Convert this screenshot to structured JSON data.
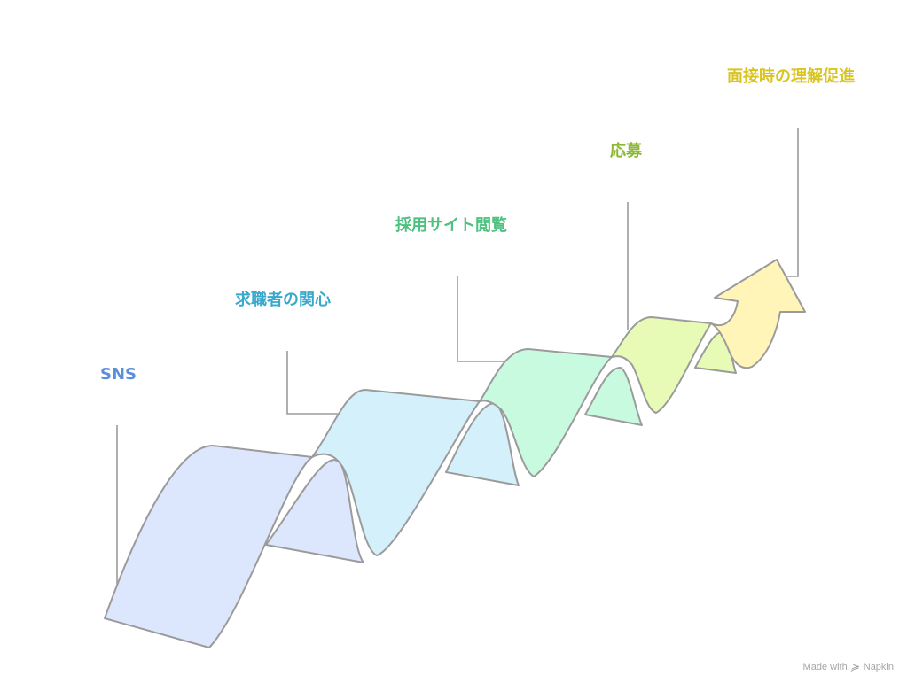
{
  "stages": [
    {
      "label": "SNS",
      "color": "#5b8fd9",
      "fill": "#dce7fd"
    },
    {
      "label": "求職者の関心",
      "color": "#3aa8cc",
      "fill": "#d3f0fb"
    },
    {
      "label": "採用サイト閲覧",
      "color": "#4cc27e",
      "fill": "#c8fadf"
    },
    {
      "label": "応募",
      "color": "#8db834",
      "fill": "#e8fbb6"
    },
    {
      "label": "面接時の理解促進",
      "color": "#d9c420",
      "fill": "#fff5b8"
    }
  ],
  "watermark": {
    "prefix": "Made with",
    "brand": "Napkin",
    "icon": "napkin-logo-icon"
  }
}
